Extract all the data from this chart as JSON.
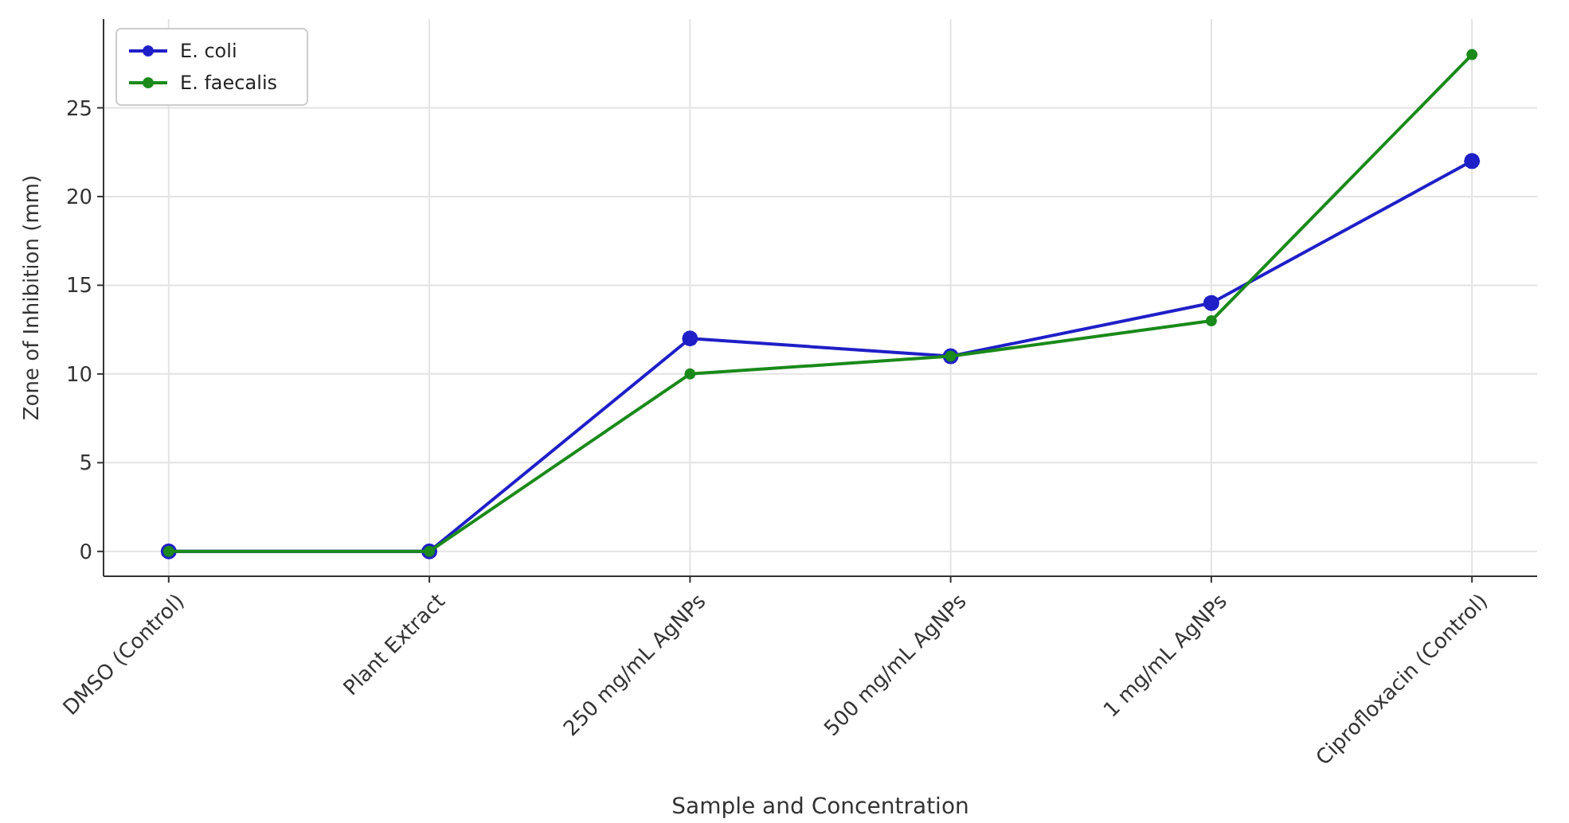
{
  "chart_data": {
    "type": "line",
    "xlabel": "Sample and Concentration",
    "ylabel": "Zone of Inhibition (mm)",
    "categories": [
      "DMSO (Control)",
      "Plant Extract",
      "250 mg/mL AgNPs",
      "500 mg/mL AgNPs",
      "1 mg/mL AgNPs",
      "Ciprofloxacin (Control)"
    ],
    "series": [
      {
        "name": "E. coli",
        "color": "#1f1fc8",
        "values": [
          0,
          0,
          12,
          11,
          14,
          22
        ]
      },
      {
        "name": "E. faecalis",
        "color": "#1a8a1a",
        "values": [
          0,
          0,
          10,
          11,
          13,
          28
        ]
      }
    ],
    "ylim": [
      -1.4,
      30
    ],
    "yticks": [
      0,
      5,
      10,
      15,
      20,
      25
    ],
    "grid": true,
    "legend": "top left",
    "marker": "circle",
    "line_style": "solid"
  }
}
